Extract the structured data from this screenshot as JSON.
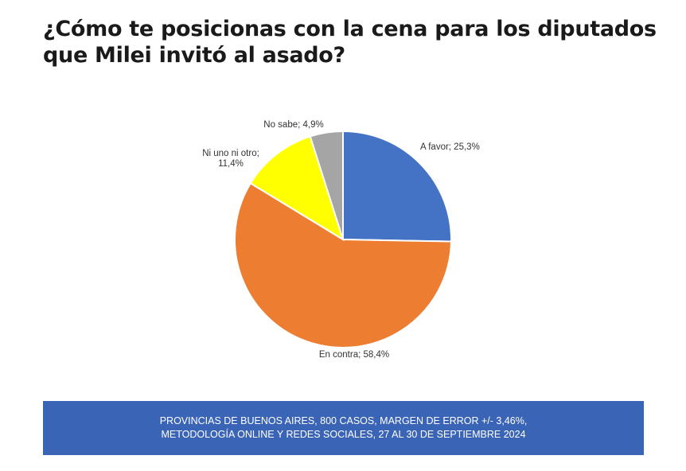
{
  "title": "¿Cómo te posicionas con la cena para los diputados que Milei invitó al asado?",
  "chart_data": {
    "type": "pie",
    "slices": [
      {
        "name": "A favor",
        "value": 25.3,
        "label_lines": [
          "A favor; 25,3%"
        ],
        "color": "#4472c4"
      },
      {
        "name": "En contra",
        "value": 58.4,
        "label_lines": [
          "En contra; 58,4%"
        ],
        "color": "#ed7d31"
      },
      {
        "name": "Ni uno ni otro",
        "value": 11.4,
        "label_lines": [
          "Ni uno ni otro;",
          "11,4%"
        ],
        "color": "#ffff00"
      },
      {
        "name": "No sabe",
        "value": 4.9,
        "label_lines": [
          "No sabe; 4,9%"
        ],
        "color": "#a5a5a5"
      }
    ]
  },
  "footer": {
    "line1": "PROVINCIAS DE BUENOS AIRES, 800 CASOS, MARGEN DE ERROR +/- 3,46%,",
    "line2": "METODOLOGÍA ONLINE Y REDES SOCIALES, 27 AL 30 DE SEPTIEMBRE 2024"
  }
}
